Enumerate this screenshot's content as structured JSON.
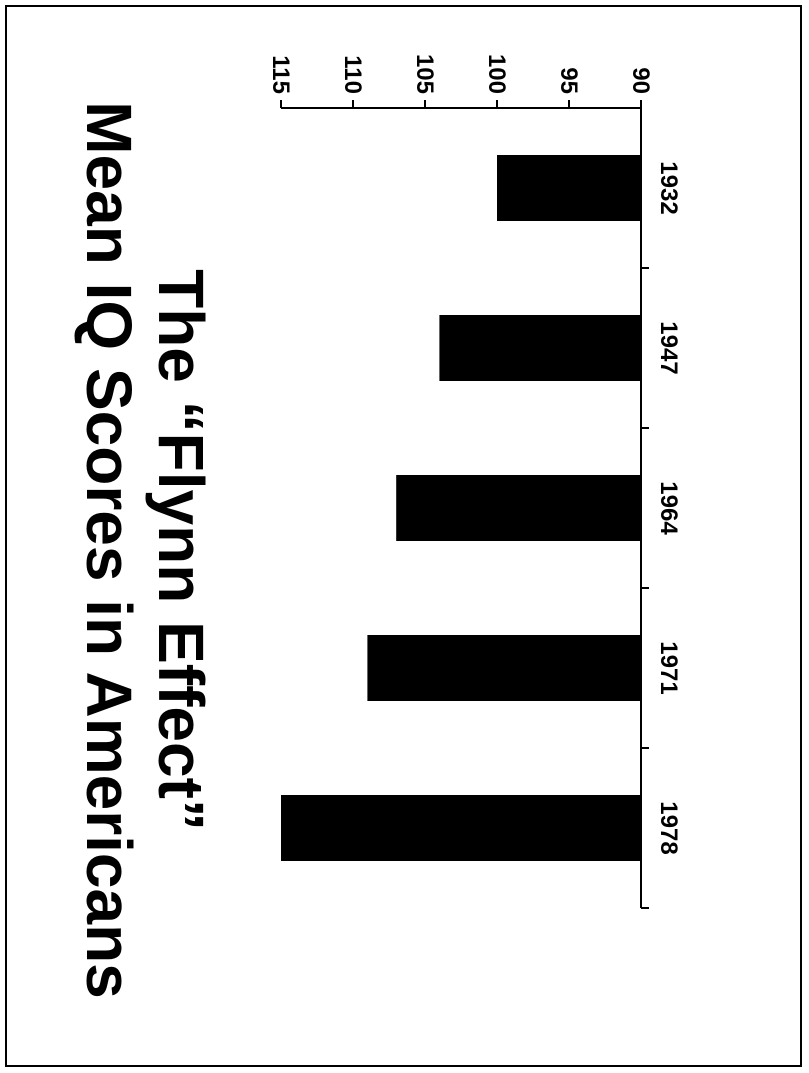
{
  "chart_data": {
    "type": "bar",
    "title": "Mean IQ Scores in Americans",
    "subtitle": "The “Flynn Effect”",
    "categories": [
      "1932",
      "1947",
      "1964",
      "1971",
      "1978"
    ],
    "values": [
      100,
      104,
      107,
      109,
      115
    ],
    "ylim": [
      90,
      115
    ],
    "yticks": [
      90,
      95,
      100,
      105,
      110,
      115
    ],
    "xlabel": "",
    "ylabel": "",
    "grid": false,
    "bar_color": "#000000"
  }
}
